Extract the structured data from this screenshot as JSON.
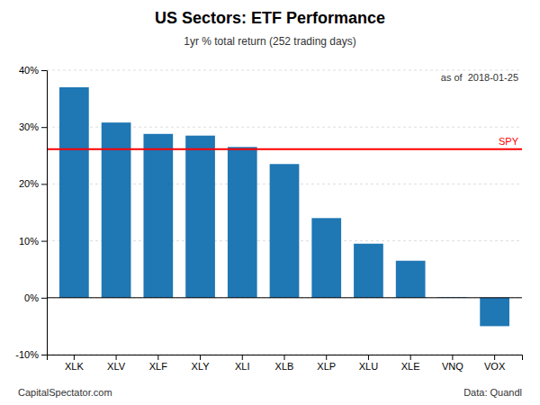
{
  "chart_data": {
    "type": "bar",
    "title": "US Sectors: ETF Performance",
    "subtitle": "1yr % total return (252 trading days)",
    "date_annotation": "as of  2018-01-25",
    "footer_left": "CapitalSpectator.com",
    "footer_right": "Data: Quandl",
    "categories": [
      "XLK",
      "XLV",
      "XLF",
      "XLY",
      "XLI",
      "XLB",
      "XLP",
      "XLU",
      "XLE",
      "VNQ",
      "VOX"
    ],
    "values": [
      37.0,
      30.8,
      28.8,
      28.5,
      26.5,
      23.5,
      14.0,
      9.5,
      6.5,
      0.1,
      -5.0
    ],
    "reference_line": {
      "value": 26.1,
      "label": "SPY",
      "color": "#FF0000"
    },
    "ylim": [
      -10,
      40
    ],
    "yticks": [
      {
        "value": -10,
        "label": "-10%"
      },
      {
        "value": 0,
        "label": "0%"
      },
      {
        "value": 10,
        "label": "10%"
      },
      {
        "value": 20,
        "label": "20%"
      },
      {
        "value": 30,
        "label": "30%"
      },
      {
        "value": 40,
        "label": "40%"
      }
    ],
    "grid": true
  }
}
